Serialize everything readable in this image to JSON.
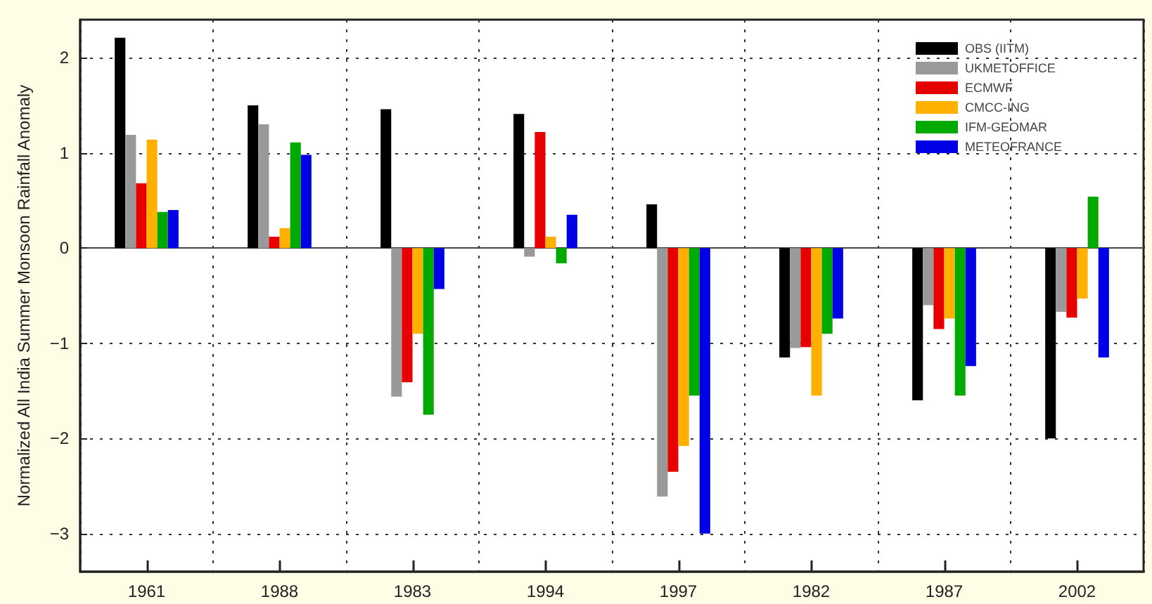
{
  "chart_data": {
    "type": "bar",
    "ylabel": "Normalized All India Summer Monsoon Rainfall Anomaly",
    "categories": [
      "1961",
      "1988",
      "1983",
      "1994",
      "1997",
      "1982",
      "1987",
      "2002"
    ],
    "series": [
      {
        "name": "OBS (IITM)",
        "color": "#000000",
        "values": [
          2.21,
          1.5,
          1.46,
          1.41,
          0.46,
          -1.15,
          -1.6,
          -2.0
        ]
      },
      {
        "name": "UKMETOFFICE",
        "color": "#999999",
        "values": [
          1.19,
          1.3,
          -1.56,
          -0.09,
          -2.61,
          -1.05,
          -0.6,
          -0.67
        ]
      },
      {
        "name": "ECMWF",
        "color": "#e60000",
        "values": [
          0.68,
          0.12,
          -1.41,
          1.22,
          -2.35,
          -1.04,
          -0.85,
          -0.73
        ]
      },
      {
        "name": "CMCC-ING",
        "color": "#ffb000",
        "values": [
          1.14,
          0.21,
          -0.9,
          0.12,
          -2.08,
          -1.55,
          -0.74,
          -0.53
        ]
      },
      {
        "name": "IFM-GEOMAR",
        "color": "#00aa00",
        "values": [
          0.38,
          1.11,
          -1.75,
          -0.16,
          -1.55,
          -0.9,
          -1.55,
          0.54
        ]
      },
      {
        "name": "METEOFRANCE",
        "color": "#0000e6",
        "values": [
          0.4,
          0.98,
          -0.43,
          0.35,
          -3.0,
          -0.74,
          -1.24,
          -1.15
        ]
      }
    ],
    "ylim": [
      -3.4,
      2.4
    ],
    "yticks": [
      -3,
      -2,
      -1,
      0,
      1,
      2
    ],
    "grid": true,
    "legend": "top right"
  }
}
